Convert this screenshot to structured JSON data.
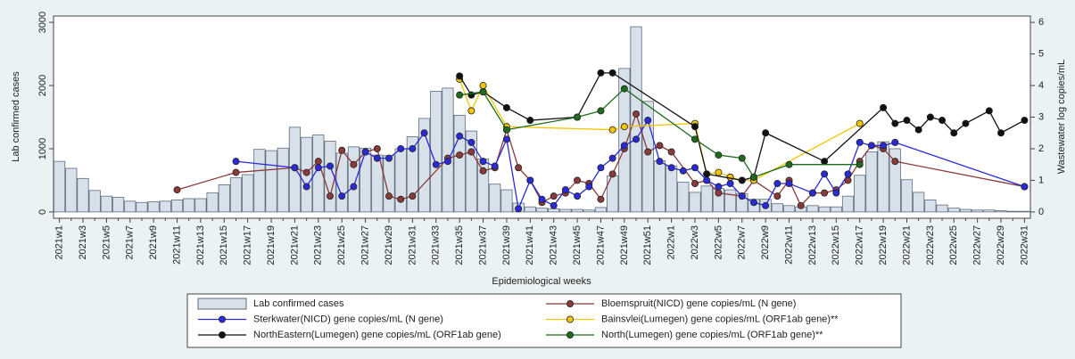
{
  "chart_data": {
    "type": "bar",
    "xlabel": "Epidemiological weeks",
    "ylabel": "Lab confirmed cases",
    "y2label": "Wastewater log copies/mL",
    "ylim": [
      -100,
      3100
    ],
    "yticks": [
      0,
      1000,
      2000,
      3000
    ],
    "y2lim": [
      -0.2,
      6.2
    ],
    "y2ticks": [
      0,
      1,
      2,
      3,
      4,
      5,
      6
    ],
    "categories": [
      "2021w1",
      null,
      "2021w3",
      null,
      "2021w5",
      null,
      "2021w7",
      null,
      "2021w9",
      null,
      "2021w11",
      null,
      "2021w13",
      null,
      "2021w15",
      null,
      "2021w17",
      null,
      "2021w19",
      null,
      "2021w21",
      null,
      "2021w23",
      null,
      "2021w25",
      null,
      "2021w27",
      null,
      "2021w29",
      null,
      "2021w31",
      null,
      "2021w33",
      null,
      "2021w35",
      null,
      "2021w37",
      null,
      "2021w39",
      null,
      "2021w41",
      null,
      "2021w43",
      null,
      "2021w45",
      null,
      "2021w47",
      null,
      "2021w49",
      null,
      "2021w51",
      null,
      "2022w1",
      null,
      "2022w3",
      null,
      "2022w5",
      null,
      "2022w7",
      null,
      "2022w9",
      null,
      "2022w11",
      null,
      "2022w13",
      null,
      "2022w15",
      null,
      "2022w17",
      null,
      "2022w19",
      null,
      "2022w21",
      null,
      "2022w23",
      null,
      "2022w25",
      null,
      "2022w27",
      null,
      "2022w29",
      null,
      "2022w31"
    ],
    "series": [
      {
        "name": "Lab confirmed cases",
        "type": "bar",
        "color": "#d8e1ea",
        "values": [
          800,
          690,
          530,
          340,
          250,
          230,
          170,
          150,
          160,
          170,
          190,
          210,
          210,
          300,
          430,
          540,
          590,
          990,
          970,
          1010,
          1340,
          1180,
          1220,
          1120,
          930,
          1030,
          1010,
          900,
          890,
          1000,
          1190,
          1480,
          1910,
          1960,
          1530,
          1280,
          840,
          440,
          350,
          140,
          80,
          60,
          50,
          40,
          40,
          30,
          70,
          570,
          2270,
          2930,
          1750,
          810,
          730,
          470,
          310,
          410,
          370,
          350,
          290,
          200,
          200,
          130,
          100,
          80,
          100,
          80,
          80,
          250,
          580,
          950,
          1110,
          1000,
          510,
          310,
          190,
          110,
          60,
          40,
          30,
          30,
          20,
          10,
          10
        ]
      },
      {
        "name": "Bloemspruit(NICD) gene copies/mL (N gene)",
        "type": "line",
        "axis": "y2",
        "color": "#8b3a3a",
        "x": [
          "2021w11",
          "2021w16",
          "2021w21",
          "2021w22",
          "2021w23",
          "2021w24",
          "2021w25",
          "2021w26",
          "2021w27",
          "2021w28",
          "2021w29",
          "2021w30",
          "2021w31",
          "2021w34",
          "2021w35",
          "2021w36",
          "2021w37",
          "2021w38",
          "2021w39",
          "2021w40",
          "2021w41",
          "2021w42",
          "2021w43",
          "2021w44",
          "2021w45",
          "2021w46",
          "2021w47",
          "2021w48",
          "2021w49",
          "2021w50",
          "2021w51",
          "2021w52",
          "2022w1",
          "2022w3",
          "2022w4",
          "2022w5",
          "2022w7",
          "2022w8",
          "2022w10",
          "2022w11",
          "2022w12",
          "2022w13",
          "2022w14",
          "2022w15",
          "2022w16",
          "2022w17",
          "2022w18",
          "2022w19",
          "2022w20",
          "2022w31"
        ],
        "values": [
          0.7,
          1.25,
          1.4,
          1.25,
          1.6,
          0.5,
          1.95,
          1.5,
          1.9,
          2.0,
          0.5,
          0.4,
          0.5,
          1.7,
          1.8,
          1.9,
          1.3,
          1.4,
          2.6,
          1.4,
          1.0,
          0.3,
          0.5,
          0.6,
          1.0,
          0.9,
          0.4,
          1.2,
          2.0,
          3.1,
          1.9,
          2.1,
          1.9,
          0.9,
          1.0,
          0.6,
          0.5,
          1.0,
          0.5,
          1.0,
          0.2,
          0.6,
          0.6,
          0.7,
          1.0,
          1.6,
          2.1,
          2.0,
          1.6,
          0.8
        ]
      },
      {
        "name": "Sterkwater(NICD) gene copies/mL (N gene)",
        "type": "line",
        "axis": "y2",
        "color": "#2a2ad8",
        "x": [
          "2021w16",
          "2021w21",
          "2021w22",
          "2021w23",
          "2021w24",
          "2021w25",
          "2021w26",
          "2021w27",
          "2021w28",
          "2021w29",
          "2021w30",
          "2021w31",
          "2021w32",
          "2021w33",
          "2021w34",
          "2021w35",
          "2021w36",
          "2021w37",
          "2021w38",
          "2021w39",
          "2021w40",
          "2021w41",
          "2021w42",
          "2021w43",
          "2021w44",
          "2021w45",
          "2021w46",
          "2021w47",
          "2021w48",
          "2021w49",
          "2021w50",
          "2021w51",
          "2021w52",
          "2022w1",
          "2022w2",
          "2022w3",
          "2022w4",
          "2022w5",
          "2022w6",
          "2022w7",
          "2022w8",
          "2022w9",
          "2022w10",
          "2022w11",
          "2022w13",
          "2022w14",
          "2022w15",
          "2022w16",
          "2022w17",
          "2022w18",
          "2022w19",
          "2022w20",
          "2022w31"
        ],
        "values": [
          1.6,
          1.4,
          0.8,
          1.4,
          1.45,
          0.5,
          0.8,
          1.9,
          1.7,
          1.7,
          2.0,
          2.0,
          2.5,
          1.5,
          1.6,
          2.4,
          2.2,
          1.6,
          1.45,
          2.3,
          0.1,
          1.0,
          0.4,
          0.2,
          0.7,
          0.5,
          0.8,
          1.4,
          1.7,
          2.1,
          2.3,
          2.9,
          1.6,
          1.4,
          1.3,
          1.4,
          1.0,
          0.8,
          0.9,
          0.5,
          0.3,
          0.2,
          0.9,
          0.9,
          0.6,
          1.2,
          0.6,
          1.2,
          2.2,
          2.1,
          2.1,
          2.2,
          0.8
        ]
      },
      {
        "name": "Bainsvlei(Lumegen) gene copies/mL (ORF1ab gene)**",
        "type": "line",
        "axis": "y2",
        "color": "#f2c500",
        "x": [
          "2021w35",
          "2021w36",
          "2021w37",
          "2021w39",
          "2021w48",
          "2021w49",
          "2022w3",
          "2022w4",
          "2022w5",
          "2022w6",
          "2022w7",
          "2022w8",
          "2022w17"
        ],
        "values": [
          4.2,
          3.2,
          4.0,
          2.7,
          2.6,
          2.7,
          2.8,
          1.2,
          1.25,
          1.1,
          1.0,
          1.0,
          2.8
        ]
      },
      {
        "name": "NorthEastern(Lumegen) gene copies/mL (ORF1ab gene)",
        "type": "line",
        "axis": "y2",
        "color": "#111111",
        "x": [
          "2021w35",
          "2021w36",
          "2021w37",
          "2021w39",
          "2021w41",
          "2021w45",
          "2021w47",
          "2021w48",
          "2022w3",
          "2022w4",
          "2022w7",
          "2022w8",
          "2022w9",
          "2022w14",
          "2022w19",
          "2022w20",
          "2022w21",
          "2022w22",
          "2022w23",
          "2022w24",
          "2022w25",
          "2022w26",
          "2022w28",
          "2022w29",
          "2022w31"
        ],
        "values": [
          4.3,
          3.7,
          3.8,
          3.3,
          2.9,
          3.0,
          4.4,
          4.4,
          2.7,
          1.2,
          1.0,
          1.1,
          2.5,
          1.6,
          3.3,
          2.8,
          2.9,
          2.6,
          3.0,
          2.9,
          2.5,
          2.8,
          3.2,
          2.5,
          2.9
        ]
      },
      {
        "name": "North(Lumegen) gene copies/mL (ORF1ab gene)**",
        "type": "line",
        "axis": "y2",
        "color": "#1e6b1e",
        "x": [
          "2021w35",
          "2021w37",
          "2021w39",
          "2021w45",
          "2021w47",
          "2021w49",
          "2022w3",
          "2022w5",
          "2022w7",
          "2022w8",
          "2022w11",
          "2022w17"
        ],
        "values": [
          3.7,
          3.8,
          2.6,
          3.0,
          3.2,
          3.9,
          2.3,
          1.8,
          1.7,
          1.1,
          1.5,
          1.5
        ]
      }
    ]
  }
}
